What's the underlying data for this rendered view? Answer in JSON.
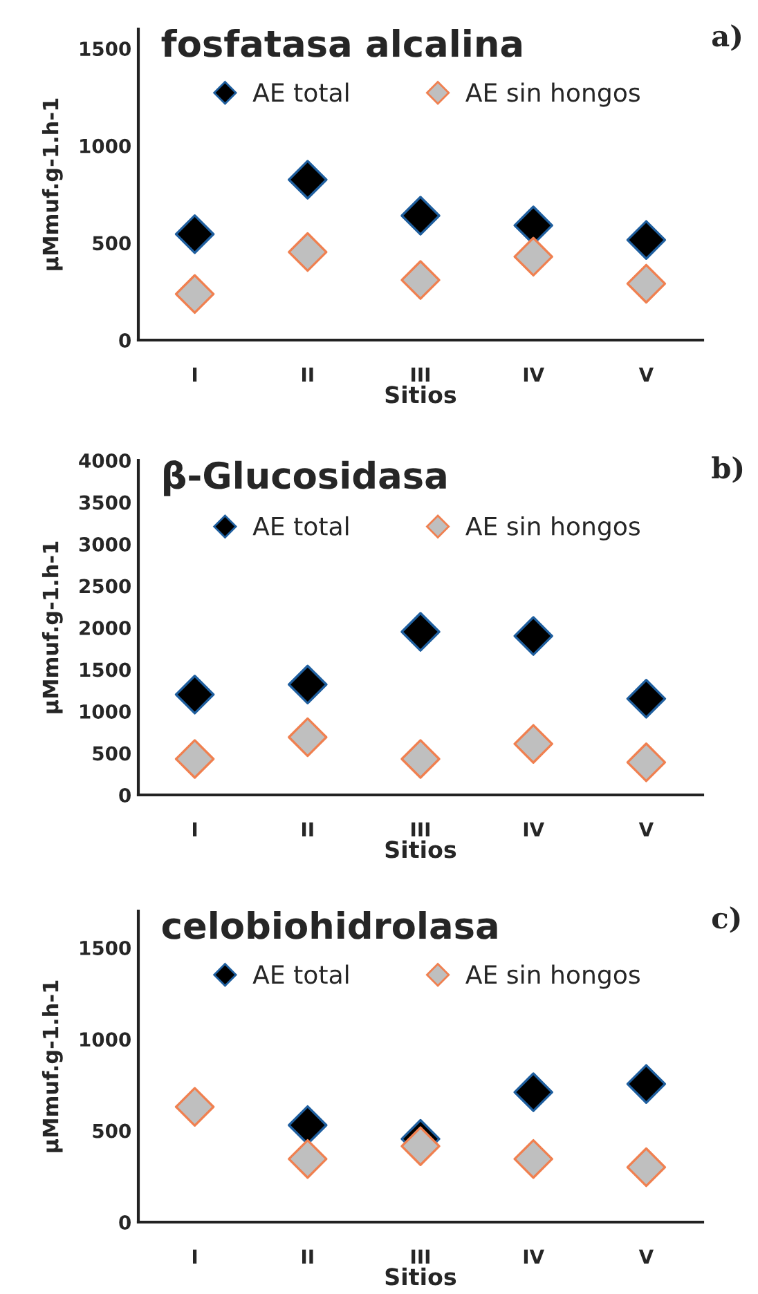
{
  "chart_data": [
    {
      "type": "scatter",
      "title": "fosfatasa alcalina",
      "xlabel": "Sitios",
      "ylabel": "µMmuf.g-1.h-1",
      "annotations": [
        "a)"
      ],
      "categories": [
        "I",
        "II",
        "III",
        "IV",
        "V"
      ],
      "ylim": [
        0,
        1600
      ],
      "yticks": [
        0,
        500,
        1000,
        1500
      ],
      "grid": false,
      "legend": "top",
      "marker": "diamond",
      "series": [
        {
          "name": "AE total",
          "color": "#000000",
          "values": [
            545,
            825,
            640,
            590,
            515
          ]
        },
        {
          "name": "AE sin hongos",
          "color": "#bfbfbf",
          "values": [
            237,
            453,
            309,
            429,
            290
          ]
        }
      ]
    },
    {
      "type": "scatter",
      "title": "β-Glucosidasa",
      "xlabel": "Sitios",
      "ylabel": "µMmuf.g-1.h-1",
      "annotations": [
        "b)"
      ],
      "categories": [
        "I",
        "II",
        "III",
        "IV",
        "V"
      ],
      "ylim": [
        0,
        4000
      ],
      "yticks": [
        0,
        500,
        1000,
        1500,
        2000,
        2500,
        3000,
        3500,
        4000
      ],
      "grid": false,
      "legend": "top",
      "marker": "diamond",
      "series": [
        {
          "name": "AE total",
          "color": "#000000",
          "values": [
            1200,
            1320,
            1950,
            1900,
            1150
          ]
        },
        {
          "name": "AE sin hongos",
          "color": "#bfbfbf",
          "values": [
            430,
            690,
            430,
            610,
            390
          ]
        }
      ]
    },
    {
      "type": "scatter",
      "title": "celobiohidrolasa",
      "xlabel": "Sitios",
      "ylabel": "µMmuf.g-1.h-1",
      "annotations": [
        "c)"
      ],
      "categories": [
        "I",
        "II",
        "III",
        "IV",
        "V"
      ],
      "ylim": [
        0,
        1700
      ],
      "yticks": [
        0,
        500,
        1000,
        1500
      ],
      "grid": false,
      "legend": "top",
      "marker": "diamond",
      "series": [
        {
          "name": "AE total",
          "color": "#000000",
          "values": [
            null,
            530,
            455,
            710,
            755
          ]
        },
        {
          "name": "AE sin hongos",
          "color": "#bfbfbf",
          "values": [
            630,
            345,
            415,
            345,
            300
          ]
        }
      ]
    }
  ]
}
